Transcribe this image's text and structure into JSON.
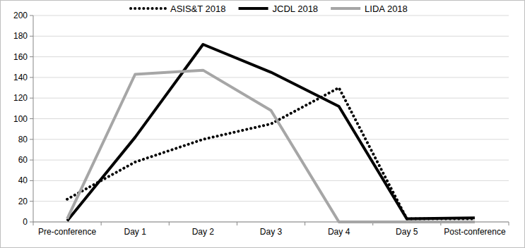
{
  "chart_data": {
    "type": "line",
    "categories": [
      "Pre-conference",
      "Day 1",
      "Day 2",
      "Day 3",
      "Day 4",
      "Day 5",
      "Post-conference"
    ],
    "series": [
      {
        "name": "ASIS&T 2018",
        "color": "#000000",
        "line_style": "dotted",
        "values": [
          22,
          58,
          80,
          95,
          130,
          3,
          3
        ]
      },
      {
        "name": "JCDL 2018",
        "color": "#000000",
        "line_style": "solid",
        "values": [
          1,
          82,
          172,
          145,
          112,
          3,
          4
        ]
      },
      {
        "name": "LIDA 2018",
        "color": "#a6a6a6",
        "line_style": "solid",
        "values": [
          3,
          143,
          147,
          108,
          0,
          0,
          0
        ]
      }
    ],
    "ylim": [
      0,
      200
    ],
    "yticks": [
      0,
      20,
      40,
      60,
      80,
      100,
      120,
      140,
      160,
      180,
      200
    ],
    "grid": true,
    "legend": "top"
  }
}
